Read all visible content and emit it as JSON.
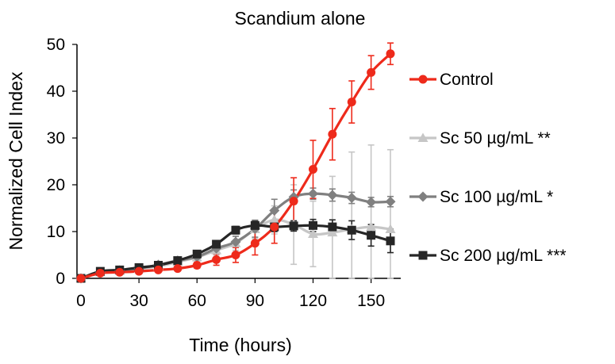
{
  "chart_data": {
    "type": "line",
    "title": "Scandium alone",
    "xlabel": "Time (hours)",
    "ylabel": "Normalized Cell Index",
    "xlim": [
      0,
      160
    ],
    "ylim": [
      0,
      50
    ],
    "xticks": [
      "0",
      "30",
      "60",
      "90",
      "120",
      "150"
    ],
    "yticks": [
      "0",
      "10",
      "20",
      "30",
      "40",
      "50"
    ],
    "xtick_values": [
      0,
      30,
      60,
      90,
      120,
      150
    ],
    "ytick_values": [
      0,
      10,
      20,
      30,
      40,
      50
    ],
    "grid": false,
    "legend_position": "right",
    "series": [
      {
        "name": "Control",
        "color": "#ee2a1b",
        "marker": "circle",
        "x": [
          0,
          10,
          20,
          30,
          40,
          50,
          60,
          70,
          80,
          90,
          100,
          110,
          120,
          130,
          140,
          150,
          160
        ],
        "values": [
          0,
          1.1,
          1.3,
          1.5,
          1.8,
          2.1,
          2.8,
          4.0,
          5.0,
          7.5,
          11.0,
          16.5,
          23.3,
          30.8,
          37.7,
          44.0,
          48.0
        ],
        "errors": [
          0,
          0.3,
          0.3,
          0.3,
          0.4,
          0.5,
          0.6,
          1.2,
          1.6,
          2.5,
          3.5,
          5.0,
          6.2,
          5.5,
          4.5,
          3.6,
          2.3
        ]
      },
      {
        "name": "Sc 50 µg/mL **",
        "color": "#c6c6c6",
        "marker": "triangle",
        "x": [
          0,
          10,
          20,
          30,
          40,
          50,
          60,
          70,
          80,
          90,
          100,
          110,
          120,
          130,
          140,
          150,
          160
        ],
        "values": [
          0,
          1.3,
          1.6,
          2.0,
          2.6,
          3.5,
          4.5,
          6.0,
          7.5,
          10.5,
          12.5,
          11.5,
          9.5,
          9.8,
          10.5,
          11.0,
          10.5
        ],
        "errors": [
          0,
          0.2,
          0.2,
          0.3,
          0.4,
          0.5,
          0.8,
          1.0,
          1.5,
          2.0,
          3.0,
          8.5,
          7.0,
          12.0,
          16.5,
          17.5,
          17.0
        ]
      },
      {
        "name": "Sc 100 µg/mL *",
        "color": "#808080",
        "marker": "diamond",
        "x": [
          0,
          10,
          20,
          30,
          40,
          50,
          60,
          70,
          80,
          90,
          100,
          110,
          120,
          130,
          140,
          150,
          160
        ],
        "values": [
          0,
          1.3,
          1.7,
          2.1,
          2.9,
          3.8,
          4.6,
          6.4,
          7.8,
          10.6,
          14.5,
          17.4,
          18.1,
          17.8,
          17.2,
          16.3,
          16.4
        ],
        "errors": [
          0,
          0.2,
          0.2,
          0.3,
          0.4,
          0.5,
          0.7,
          1.0,
          1.2,
          1.8,
          2.4,
          1.5,
          1.2,
          1.3,
          1.2,
          1.0,
          1.1
        ]
      },
      {
        "name": "Sc 200 µg/mL ***",
        "color": "#262626",
        "marker": "square",
        "x": [
          0,
          10,
          20,
          30,
          40,
          50,
          60,
          70,
          80,
          90,
          100,
          110,
          120,
          130,
          140,
          150,
          160
        ],
        "values": [
          0,
          1.5,
          1.8,
          2.3,
          2.8,
          3.8,
          5.2,
          7.3,
          10.3,
          11.3,
          11.0,
          11.2,
          11.3,
          11.0,
          10.3,
          9.2,
          8.0
        ],
        "errors": [
          0,
          0.2,
          0.2,
          0.3,
          0.3,
          0.4,
          0.5,
          0.7,
          0.8,
          0.9,
          1.0,
          1.1,
          1.3,
          1.5,
          2.0,
          2.3,
          2.5
        ]
      }
    ]
  }
}
